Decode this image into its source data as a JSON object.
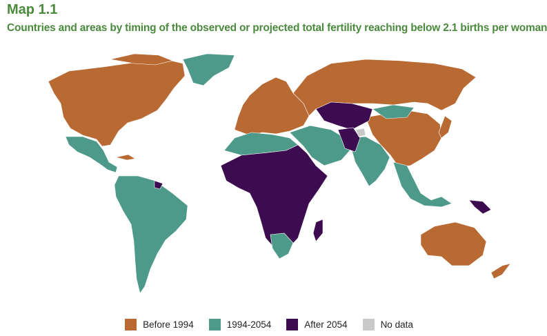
{
  "header": {
    "label": "Map 1.1",
    "title": "Countries and areas by timing of the observed or projected total fertility reaching below 2.1 births per woman"
  },
  "colors": {
    "before_1994": "#b96a33",
    "between": "#4e9a8a",
    "after_2054": "#3d0b4f",
    "no_data": "#c9c9c9",
    "title_green": "#4a8a3c"
  },
  "legend": [
    {
      "label": "Before 1994",
      "color": "#b96a33"
    },
    {
      "label": "1994-2054",
      "color": "#4e9a8a"
    },
    {
      "label": "After 2054",
      "color": "#3d0b4f"
    },
    {
      "label": "No data",
      "color": "#c9c9c9"
    }
  ]
}
